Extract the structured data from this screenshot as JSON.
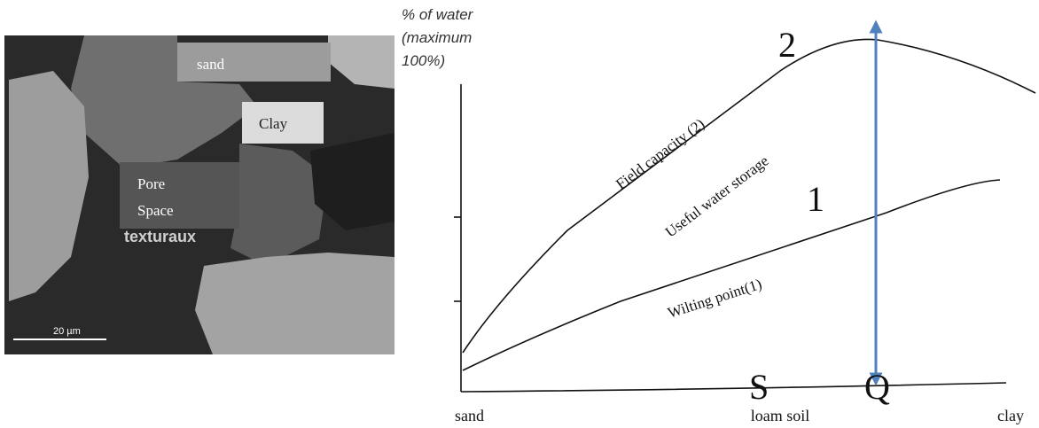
{
  "micrograph": {
    "labels": {
      "sand": "sand",
      "clay": "Clay",
      "pore_space": [
        "Pore",
        "Space"
      ]
    },
    "embedded_text": "texturaux",
    "scale_bar": "20 µm"
  },
  "diagram": {
    "y_axis_title": [
      "% of water",
      "(maximum",
      "100%)"
    ],
    "curve_markers": {
      "upper": "2",
      "lower": "1"
    },
    "curve_labels": {
      "field_capacity": "Field capacity (2)",
      "useful_water": "Useful water storage",
      "wilting_point": "Wilting point(1)"
    },
    "points": {
      "s": "S",
      "q": "Q"
    },
    "x_labels": [
      "sand",
      "loam soil",
      "clay"
    ]
  }
}
